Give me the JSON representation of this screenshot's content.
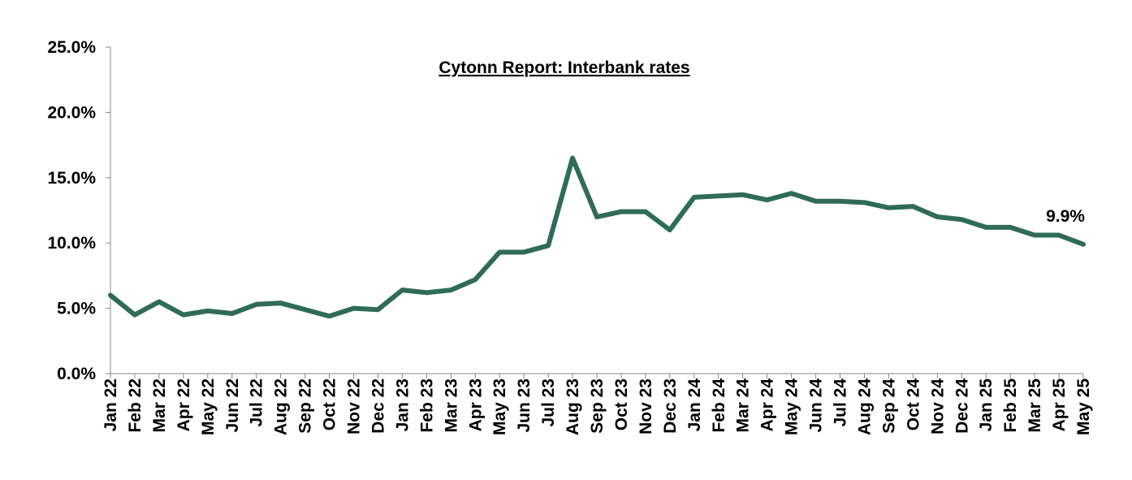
{
  "chart_data": {
    "type": "line",
    "title": "Cytonn Report: Interbank rates",
    "categories": [
      "Jan 22",
      "Feb 22",
      "Mar 22",
      "Apr 22",
      "May 22",
      "Jun 22",
      "Jul 22",
      "Aug 22",
      "Sep 22",
      "Oct 22",
      "Nov 22",
      "Dec 22",
      "Jan 23",
      "Feb 23",
      "Mar 23",
      "Apr 23",
      "May 23",
      "Jun 23",
      "Jul 23",
      "Aug 23",
      "Sep 23",
      "Oct 23",
      "Nov 23",
      "Dec 23",
      "Jan 24",
      "Feb 24",
      "Mar 24",
      "Apr 24",
      "May 24",
      "Jun 24",
      "Jul 24",
      "Aug 24",
      "Sep 24",
      "Oct 24",
      "Nov 24",
      "Dec 24",
      "Jan 25",
      "Feb 25",
      "Mar 25",
      "Apr 25",
      "May 25"
    ],
    "values": [
      6.0,
      4.5,
      5.5,
      4.5,
      4.8,
      4.6,
      5.3,
      5.4,
      4.9,
      4.4,
      5.0,
      4.9,
      6.4,
      6.2,
      6.4,
      7.2,
      9.3,
      9.3,
      9.8,
      16.5,
      12.0,
      12.4,
      12.4,
      11.0,
      13.5,
      13.6,
      13.7,
      13.3,
      13.8,
      13.2,
      13.2,
      13.1,
      12.7,
      12.8,
      12.0,
      11.8,
      11.2,
      11.2,
      10.6,
      10.6,
      9.9
    ],
    "value_labels": [
      null,
      null,
      null,
      null,
      null,
      null,
      null,
      null,
      null,
      null,
      null,
      null,
      null,
      null,
      null,
      null,
      null,
      null,
      null,
      null,
      null,
      null,
      null,
      null,
      null,
      null,
      null,
      null,
      null,
      null,
      null,
      null,
      null,
      null,
      null,
      null,
      null,
      null,
      null,
      null,
      "9.9%"
    ],
    "color": "#2f6b59",
    "ylim": [
      0,
      25
    ],
    "yticks": [
      {
        "value": 0,
        "label": "0.0%"
      },
      {
        "value": 5,
        "label": "5.0%"
      },
      {
        "value": 10,
        "label": "10.0%"
      },
      {
        "value": 15,
        "label": "15.0%"
      },
      {
        "value": 20,
        "label": "20.0%"
      },
      {
        "value": 25,
        "label": "25.0%"
      }
    ],
    "grid": false
  }
}
